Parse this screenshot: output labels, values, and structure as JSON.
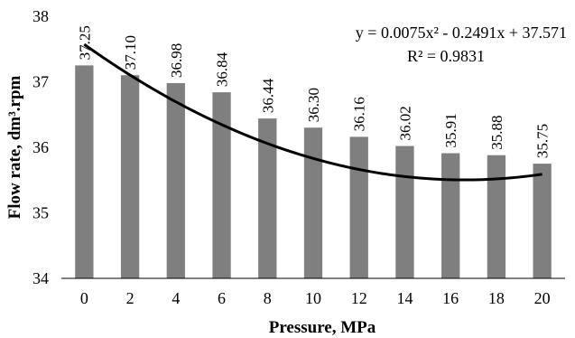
{
  "chart_data": {
    "type": "bar",
    "categories": [
      "0",
      "2",
      "4",
      "6",
      "8",
      "10",
      "12",
      "14",
      "16",
      "18",
      "20"
    ],
    "values": [
      37.25,
      37.1,
      36.98,
      36.84,
      36.44,
      36.3,
      36.16,
      36.02,
      35.91,
      35.88,
      35.75
    ],
    "value_labels": [
      "37.25",
      "37.10",
      "36.98",
      "36.84",
      "36.44",
      "36.30",
      "36.16",
      "36.02",
      "35.91",
      "35.88",
      "35.75"
    ],
    "x_numeric": [
      0,
      2,
      4,
      6,
      8,
      10,
      12,
      14,
      16,
      18,
      20
    ],
    "title": "",
    "xlabel": "Pressure, MPa",
    "ylabel": "Flow rate, dm³.rpm",
    "ylim": [
      34,
      38
    ],
    "yticks": [
      "34",
      "35",
      "36",
      "37",
      "38"
    ],
    "grid": false,
    "legend": "none",
    "bar_color": "#7f7f7f",
    "trendline": {
      "type": "polynomial",
      "coefficients": [
        0.0075,
        -0.2491,
        37.571
      ],
      "equation": "y = 0.0075x² - 0.2491x + 37.571",
      "r_squared": "R² = 0.9831",
      "color": "#000000"
    }
  }
}
